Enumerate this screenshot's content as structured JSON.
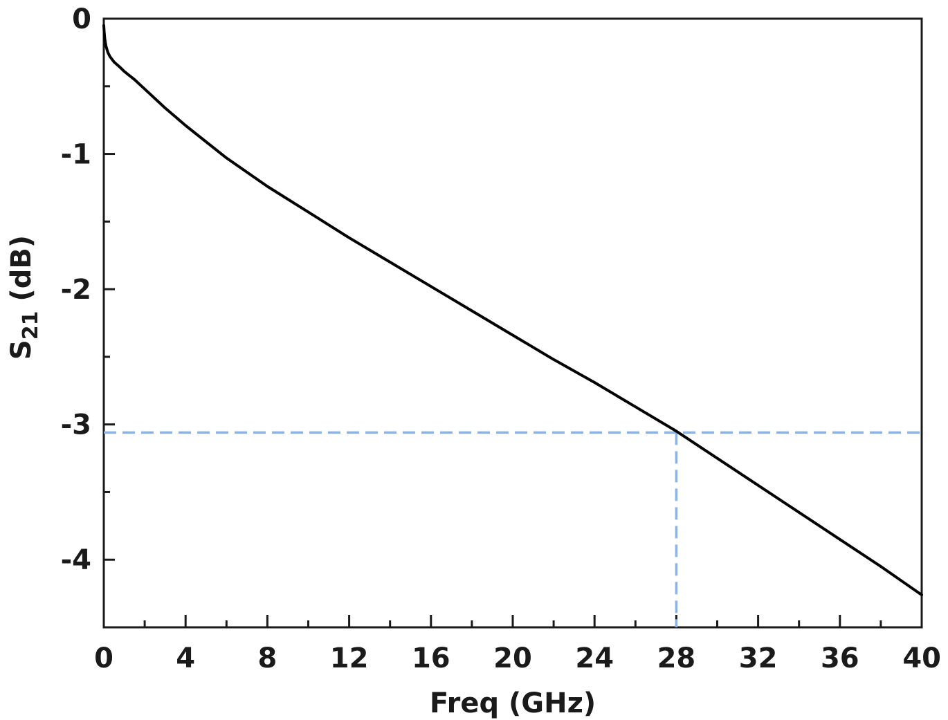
{
  "chart_data": {
    "type": "line",
    "title": "",
    "xlabel": "Freq (GHz)",
    "ylabel_main": "S",
    "ylabel_sub": "21",
    "ylabel_rest": " (dB)",
    "xlim": [
      0,
      40
    ],
    "ylim": [
      -4.5,
      0
    ],
    "xticks": [
      0,
      4,
      8,
      12,
      16,
      20,
      24,
      28,
      32,
      36,
      40
    ],
    "xtick_labels": [
      "0",
      "4",
      "8",
      "12",
      "16",
      "20",
      "24",
      "28",
      "32",
      "36",
      "40"
    ],
    "xminor_step": 2,
    "yticks": [
      0,
      -1,
      -2,
      -3,
      -4
    ],
    "ytick_labels": [
      "0",
      "-1",
      "-2",
      "-3",
      "-4"
    ],
    "yminor_step": 0.5,
    "grid": false,
    "series": [
      {
        "name": "S21",
        "color": "#000000",
        "x": [
          0,
          0.02,
          0.05,
          0.1,
          0.2,
          0.3,
          0.5,
          0.8,
          1,
          1.5,
          2,
          3,
          4,
          5,
          6,
          8,
          10,
          12,
          14,
          16,
          18,
          20,
          22,
          24,
          26,
          28,
          30,
          32,
          34,
          36,
          38,
          40
        ],
        "y": [
          -0.05,
          -0.1,
          -0.15,
          -0.2,
          -0.25,
          -0.28,
          -0.32,
          -0.36,
          -0.39,
          -0.45,
          -0.52,
          -0.66,
          -0.79,
          -0.91,
          -1.03,
          -1.24,
          -1.43,
          -1.62,
          -1.8,
          -1.98,
          -2.16,
          -2.34,
          -2.52,
          -2.69,
          -2.87,
          -3.05,
          -3.25,
          -3.45,
          -3.65,
          -3.85,
          -4.05,
          -4.26
        ]
      }
    ],
    "reference_lines": {
      "color": "#8db3e2",
      "horizontal_y": -3.06,
      "vertical_x": 28
    }
  }
}
